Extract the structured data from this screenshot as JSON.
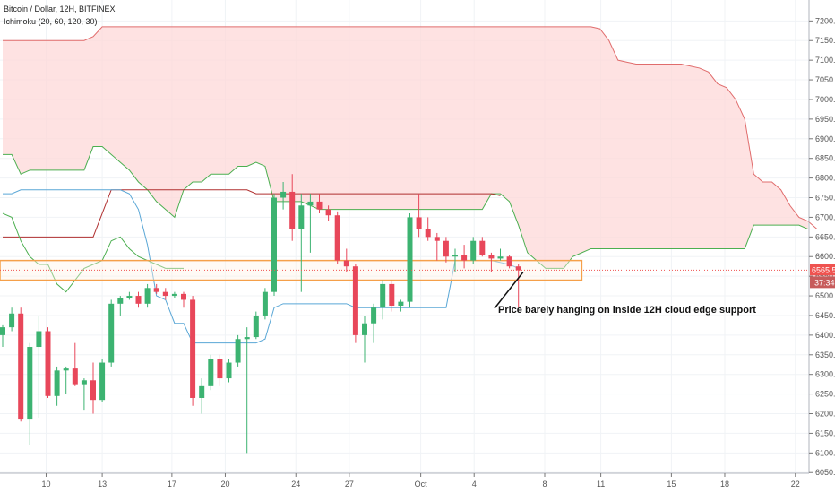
{
  "header": {
    "symbol_line": "Bitcoin / Dollar, 12H, BITFINEX",
    "indicator_line": "Ichimoku (20, 60, 120, 30)"
  },
  "colors": {
    "bull": "#26a69a",
    "bear": "#ef5350",
    "bull_candle": "#3cb371",
    "bear_candle": "#e8475a",
    "cloud_fill": "#fdd8d8",
    "cloud_red": "#e06c6c",
    "cloud_green": "#4caf50",
    "tenkan": "#5aa7d6",
    "kijun": "#b03030",
    "zone": "#f5a04a",
    "price_line": "#ef5350",
    "timer_bg": "#c75b5b"
  },
  "price_badges": {
    "last_price": "6565.5",
    "countdown": "37:34"
  },
  "annotation": {
    "text": "Price barely hanging on inside 12H cloud edge support"
  },
  "chart_data": {
    "type": "candlestick",
    "y_axis": {
      "ylim": [
        6030,
        7235
      ],
      "ticks": [
        "7200.0",
        "7150.0",
        "7100.0",
        "7050.0",
        "7000.0",
        "6950.0",
        "6900.0",
        "6850.0",
        "6800.0",
        "6750.0",
        "6700.0",
        "6650.0",
        "6600.0",
        "6550.0",
        "6500.0",
        "6450.0",
        "6400.0",
        "6350.0",
        "6300.0",
        "6250.0",
        "6200.0",
        "6150.0",
        "6100.0",
        "6050.0"
      ],
      "tick_values": [
        7200,
        7150,
        7100,
        7050,
        7000,
        6950,
        6900,
        6850,
        6800,
        6750,
        6700,
        6650,
        6600,
        6550,
        6500,
        6450,
        6400,
        6350,
        6300,
        6250,
        6200,
        6150,
        6100,
        6050
      ]
    },
    "x_axis": {
      "ticks": [
        "10",
        "13",
        "17",
        "20",
        "24",
        "27",
        "Oct",
        "4",
        "8",
        "11",
        "15",
        "18",
        "22"
      ],
      "tick_bars": [
        4.8,
        11,
        18.7,
        24.6,
        32.4,
        38.3,
        46.2,
        52.1,
        59.9,
        66.1,
        73.9,
        79.8,
        87.6
      ]
    },
    "candles": [
      {
        "o": 6400,
        "h": 6425,
        "l": 6370,
        "c": 6420
      },
      {
        "o": 6420,
        "h": 6470,
        "l": 6410,
        "c": 6455
      },
      {
        "o": 6455,
        "h": 6470,
        "l": 6180,
        "c": 6185
      },
      {
        "o": 6185,
        "h": 6380,
        "l": 6120,
        "c": 6370
      },
      {
        "o": 6370,
        "h": 6450,
        "l": 6190,
        "c": 6410
      },
      {
        "o": 6410,
        "h": 6420,
        "l": 6240,
        "c": 6245
      },
      {
        "o": 6245,
        "h": 6320,
        "l": 6220,
        "c": 6310
      },
      {
        "o": 6310,
        "h": 6320,
        "l": 6250,
        "c": 6315
      },
      {
        "o": 6315,
        "h": 6380,
        "l": 6270,
        "c": 6275
      },
      {
        "o": 6275,
        "h": 6290,
        "l": 6210,
        "c": 6285
      },
      {
        "o": 6285,
        "h": 6330,
        "l": 6200,
        "c": 6235
      },
      {
        "o": 6235,
        "h": 6340,
        "l": 6230,
        "c": 6330
      },
      {
        "o": 6330,
        "h": 6490,
        "l": 6320,
        "c": 6480
      },
      {
        "o": 6480,
        "h": 6500,
        "l": 6450,
        "c": 6495
      },
      {
        "o": 6495,
        "h": 6510,
        "l": 6490,
        "c": 6500
      },
      {
        "o": 6500,
        "h": 6510,
        "l": 6470,
        "c": 6480
      },
      {
        "o": 6480,
        "h": 6530,
        "l": 6470,
        "c": 6520
      },
      {
        "o": 6520,
        "h": 6530,
        "l": 6505,
        "c": 6510
      },
      {
        "o": 6510,
        "h": 6520,
        "l": 6490,
        "c": 6500
      },
      {
        "o": 6500,
        "h": 6510,
        "l": 6495,
        "c": 6505
      },
      {
        "o": 6505,
        "h": 6510,
        "l": 6470,
        "c": 6490
      },
      {
        "o": 6490,
        "h": 6500,
        "l": 6220,
        "c": 6240
      },
      {
        "o": 6240,
        "h": 6290,
        "l": 6200,
        "c": 6270
      },
      {
        "o": 6270,
        "h": 6350,
        "l": 6260,
        "c": 6340
      },
      {
        "o": 6340,
        "h": 6350,
        "l": 6270,
        "c": 6290
      },
      {
        "o": 6290,
        "h": 6340,
        "l": 6280,
        "c": 6330
      },
      {
        "o": 6330,
        "h": 6400,
        "l": 6320,
        "c": 6390
      },
      {
        "o": 6390,
        "h": 6420,
        "l": 6100,
        "c": 6395
      },
      {
        "o": 6395,
        "h": 6460,
        "l": 6390,
        "c": 6450
      },
      {
        "o": 6450,
        "h": 6520,
        "l": 6440,
        "c": 6510
      },
      {
        "o": 6510,
        "h": 6760,
        "l": 6500,
        "c": 6750
      },
      {
        "o": 6750,
        "h": 6790,
        "l": 6720,
        "c": 6765
      },
      {
        "o": 6765,
        "h": 6810,
        "l": 6640,
        "c": 6670
      },
      {
        "o": 6670,
        "h": 6760,
        "l": 6510,
        "c": 6730
      },
      {
        "o": 6730,
        "h": 6760,
        "l": 6610,
        "c": 6740
      },
      {
        "o": 6740,
        "h": 6760,
        "l": 6710,
        "c": 6720
      },
      {
        "o": 6720,
        "h": 6730,
        "l": 6690,
        "c": 6705
      },
      {
        "o": 6705,
        "h": 6715,
        "l": 6580,
        "c": 6590
      },
      {
        "o": 6590,
        "h": 6620,
        "l": 6560,
        "c": 6575
      },
      {
        "o": 6575,
        "h": 6580,
        "l": 6380,
        "c": 6400
      },
      {
        "o": 6400,
        "h": 6450,
        "l": 6330,
        "c": 6430
      },
      {
        "o": 6430,
        "h": 6480,
        "l": 6380,
        "c": 6470
      },
      {
        "o": 6470,
        "h": 6540,
        "l": 6440,
        "c": 6530
      },
      {
        "o": 6530,
        "h": 6540,
        "l": 6460,
        "c": 6475
      },
      {
        "o": 6475,
        "h": 6490,
        "l": 6460,
        "c": 6485
      },
      {
        "o": 6485,
        "h": 6710,
        "l": 6470,
        "c": 6700
      },
      {
        "o": 6700,
        "h": 6760,
        "l": 6650,
        "c": 6670
      },
      {
        "o": 6670,
        "h": 6700,
        "l": 6640,
        "c": 6650
      },
      {
        "o": 6650,
        "h": 6660,
        "l": 6590,
        "c": 6640
      },
      {
        "o": 6640,
        "h": 6650,
        "l": 6585,
        "c": 6600
      },
      {
        "o": 6600,
        "h": 6620,
        "l": 6560,
        "c": 6605
      },
      {
        "o": 6605,
        "h": 6630,
        "l": 6570,
        "c": 6590
      },
      {
        "o": 6590,
        "h": 6650,
        "l": 6580,
        "c": 6640
      },
      {
        "o": 6640,
        "h": 6650,
        "l": 6600,
        "c": 6605
      },
      {
        "o": 6605,
        "h": 6610,
        "l": 6560,
        "c": 6595
      },
      {
        "o": 6595,
        "h": 6620,
        "l": 6590,
        "c": 6600
      },
      {
        "o": 6600,
        "h": 6605,
        "l": 6570,
        "c": 6575
      },
      {
        "o": 6575,
        "h": 6580,
        "l": 6470,
        "c": 6565
      }
    ],
    "cloud_span_a": [
      [
        0,
        6860
      ],
      [
        1,
        6860
      ],
      [
        2,
        6810
      ],
      [
        3,
        6820
      ],
      [
        4,
        6820
      ],
      [
        5,
        6820
      ],
      [
        6,
        6820
      ],
      [
        7,
        6820
      ],
      [
        8,
        6820
      ],
      [
        9,
        6820
      ],
      [
        10,
        6880
      ],
      [
        11,
        6880
      ],
      [
        12,
        6860
      ],
      [
        13,
        6840
      ],
      [
        14,
        6820
      ],
      [
        15,
        6790
      ],
      [
        16,
        6770
      ],
      [
        17,
        6740
      ],
      [
        18,
        6720
      ],
      [
        19,
        6700
      ],
      [
        20,
        6770
      ],
      [
        21,
        6790
      ],
      [
        22,
        6790
      ],
      [
        23,
        6810
      ],
      [
        24,
        6810
      ],
      [
        25,
        6810
      ],
      [
        26,
        6830
      ],
      [
        27,
        6830
      ],
      [
        28,
        6840
      ],
      [
        29,
        6830
      ],
      [
        30,
        6740
      ],
      [
        31,
        6740
      ],
      [
        32,
        6740
      ],
      [
        33,
        6740
      ],
      [
        34,
        6730
      ],
      [
        35,
        6720
      ],
      [
        36,
        6720
      ],
      [
        37,
        6720
      ],
      [
        38,
        6720
      ],
      [
        39,
        6720
      ],
      [
        40,
        6720
      ],
      [
        41,
        6720
      ],
      [
        42,
        6720
      ],
      [
        43,
        6720
      ],
      [
        44,
        6720
      ],
      [
        45,
        6720
      ],
      [
        46,
        6720
      ],
      [
        47,
        6720
      ],
      [
        48,
        6720
      ],
      [
        49,
        6720
      ],
      [
        50,
        6720
      ],
      [
        51,
        6720
      ],
      [
        52,
        6720
      ],
      [
        53,
        6720
      ],
      [
        54,
        6760
      ],
      [
        55,
        6760
      ],
      [
        56,
        6740
      ],
      [
        57,
        6680
      ],
      [
        58,
        6610
      ],
      [
        59,
        6590
      ],
      [
        60,
        6570
      ],
      [
        61,
        6570
      ],
      [
        62,
        6570
      ],
      [
        63,
        6600
      ],
      [
        64,
        6610
      ],
      [
        65,
        6620
      ],
      [
        66,
        6620
      ],
      [
        67,
        6620
      ],
      [
        68,
        6620
      ],
      [
        69,
        6620
      ],
      [
        70,
        6620
      ],
      [
        71,
        6620
      ],
      [
        72,
        6620
      ],
      [
        73,
        6620
      ],
      [
        74,
        6620
      ],
      [
        75,
        6620
      ],
      [
        76,
        6620
      ],
      [
        77,
        6620
      ],
      [
        78,
        6620
      ],
      [
        79,
        6620
      ],
      [
        80,
        6620
      ],
      [
        81,
        6620
      ],
      [
        82,
        6620
      ],
      [
        83,
        6680
      ],
      [
        84,
        6680
      ],
      [
        85,
        6680
      ],
      [
        86,
        6680
      ],
      [
        87,
        6680
      ],
      [
        88,
        6680
      ],
      [
        89,
        6670
      ]
    ],
    "cloud_span_b": [
      [
        0,
        7150
      ],
      [
        1,
        7150
      ],
      [
        2,
        7150
      ],
      [
        3,
        7150
      ],
      [
        4,
        7150
      ],
      [
        5,
        7150
      ],
      [
        6,
        7150
      ],
      [
        7,
        7150
      ],
      [
        8,
        7150
      ],
      [
        9,
        7150
      ],
      [
        10,
        7160
      ],
      [
        11,
        7185
      ],
      [
        12,
        7185
      ],
      [
        13,
        7185
      ],
      [
        14,
        7185
      ],
      [
        15,
        7185
      ],
      [
        16,
        7185
      ],
      [
        17,
        7185
      ],
      [
        18,
        7185
      ],
      [
        19,
        7185
      ],
      [
        20,
        7185
      ],
      [
        21,
        7185
      ],
      [
        22,
        7185
      ],
      [
        23,
        7185
      ],
      [
        24,
        7185
      ],
      [
        25,
        7185
      ],
      [
        26,
        7185
      ],
      [
        27,
        7185
      ],
      [
        28,
        7185
      ],
      [
        29,
        7185
      ],
      [
        30,
        7185
      ],
      [
        31,
        7185
      ],
      [
        32,
        7185
      ],
      [
        33,
        7185
      ],
      [
        34,
        7185
      ],
      [
        35,
        7185
      ],
      [
        36,
        7185
      ],
      [
        37,
        7185
      ],
      [
        38,
        7185
      ],
      [
        39,
        7185
      ],
      [
        40,
        7185
      ],
      [
        41,
        7185
      ],
      [
        42,
        7185
      ],
      [
        43,
        7185
      ],
      [
        44,
        7185
      ],
      [
        45,
        7185
      ],
      [
        46,
        7185
      ],
      [
        47,
        7185
      ],
      [
        48,
        7185
      ],
      [
        49,
        7185
      ],
      [
        50,
        7185
      ],
      [
        51,
        7185
      ],
      [
        52,
        7185
      ],
      [
        53,
        7185
      ],
      [
        54,
        7185
      ],
      [
        55,
        7185
      ],
      [
        56,
        7185
      ],
      [
        57,
        7185
      ],
      [
        58,
        7185
      ],
      [
        59,
        7185
      ],
      [
        60,
        7185
      ],
      [
        61,
        7185
      ],
      [
        62,
        7185
      ],
      [
        63,
        7185
      ],
      [
        64,
        7185
      ],
      [
        65,
        7185
      ],
      [
        66,
        7180
      ],
      [
        67,
        7150
      ],
      [
        68,
        7100
      ],
      [
        69,
        7095
      ],
      [
        70,
        7090
      ],
      [
        71,
        7090
      ],
      [
        72,
        7090
      ],
      [
        73,
        7090
      ],
      [
        74,
        7090
      ],
      [
        75,
        7090
      ],
      [
        76,
        7085
      ],
      [
        77,
        7080
      ],
      [
        78,
        7070
      ],
      [
        79,
        7040
      ],
      [
        80,
        7030
      ],
      [
        81,
        7000
      ],
      [
        82,
        6950
      ],
      [
        83,
        6810
      ],
      [
        84,
        6790
      ],
      [
        85,
        6790
      ],
      [
        86,
        6770
      ],
      [
        87,
        6730
      ],
      [
        88,
        6700
      ],
      [
        89,
        6690
      ],
      [
        90,
        6670
      ]
    ],
    "kijun": [
      [
        0,
        6650
      ],
      [
        10,
        6650
      ],
      [
        11,
        6710
      ],
      [
        12,
        6770
      ],
      [
        13,
        6770
      ],
      [
        20,
        6770
      ],
      [
        21,
        6770
      ],
      [
        27,
        6770
      ],
      [
        28,
        6760
      ],
      [
        30,
        6760
      ],
      [
        40,
        6760
      ],
      [
        50,
        6760
      ],
      [
        54,
        6760
      ],
      [
        55,
        6755
      ]
    ],
    "tenkan": [
      [
        0,
        6760
      ],
      [
        1,
        6760
      ],
      [
        2,
        6770
      ],
      [
        3,
        6770
      ],
      [
        4,
        6770
      ],
      [
        13,
        6770
      ],
      [
        14,
        6760
      ],
      [
        15,
        6720
      ],
      [
        16,
        6630
      ],
      [
        17,
        6500
      ],
      [
        18,
        6490
      ],
      [
        19,
        6430
      ],
      [
        20,
        6430
      ],
      [
        21,
        6380
      ],
      [
        22,
        6380
      ],
      [
        23,
        6380
      ],
      [
        24,
        6380
      ],
      [
        25,
        6380
      ],
      [
        26,
        6380
      ],
      [
        27,
        6380
      ],
      [
        28,
        6380
      ],
      [
        29,
        6390
      ],
      [
        30,
        6470
      ],
      [
        31,
        6480
      ],
      [
        32,
        6480
      ],
      [
        33,
        6480
      ],
      [
        34,
        6480
      ],
      [
        35,
        6480
      ],
      [
        36,
        6480
      ],
      [
        37,
        6480
      ],
      [
        38,
        6480
      ],
      [
        39,
        6470
      ],
      [
        40,
        6470
      ],
      [
        41,
        6470
      ],
      [
        42,
        6470
      ],
      [
        43,
        6470
      ],
      [
        44,
        6470
      ],
      [
        45,
        6470
      ],
      [
        46,
        6470
      ],
      [
        47,
        6470
      ],
      [
        48,
        6470
      ],
      [
        49,
        6470
      ],
      [
        50,
        6590
      ],
      [
        51,
        6590
      ],
      [
        52,
        6590
      ],
      [
        53,
        6590
      ],
      [
        54,
        6590
      ],
      [
        55,
        6585
      ],
      [
        56,
        6580
      ],
      [
        57,
        6570
      ]
    ],
    "chikou": [
      [
        0,
        6710
      ],
      [
        1,
        6700
      ],
      [
        2,
        6640
      ],
      [
        3,
        6600
      ],
      [
        4,
        6580
      ],
      [
        5,
        6580
      ],
      [
        6,
        6530
      ],
      [
        7,
        6510
      ],
      [
        8,
        6540
      ],
      [
        9,
        6570
      ],
      [
        10,
        6580
      ],
      [
        11,
        6590
      ],
      [
        12,
        6640
      ],
      [
        13,
        6650
      ],
      [
        14,
        6620
      ],
      [
        15,
        6600
      ],
      [
        16,
        6590
      ],
      [
        17,
        6580
      ],
      [
        18,
        6570
      ],
      [
        19,
        6570
      ],
      [
        20,
        6570
      ]
    ],
    "zone": {
      "top": 6590,
      "bottom": 6540,
      "end_bar": 64
    },
    "last_price": 6565.5
  }
}
